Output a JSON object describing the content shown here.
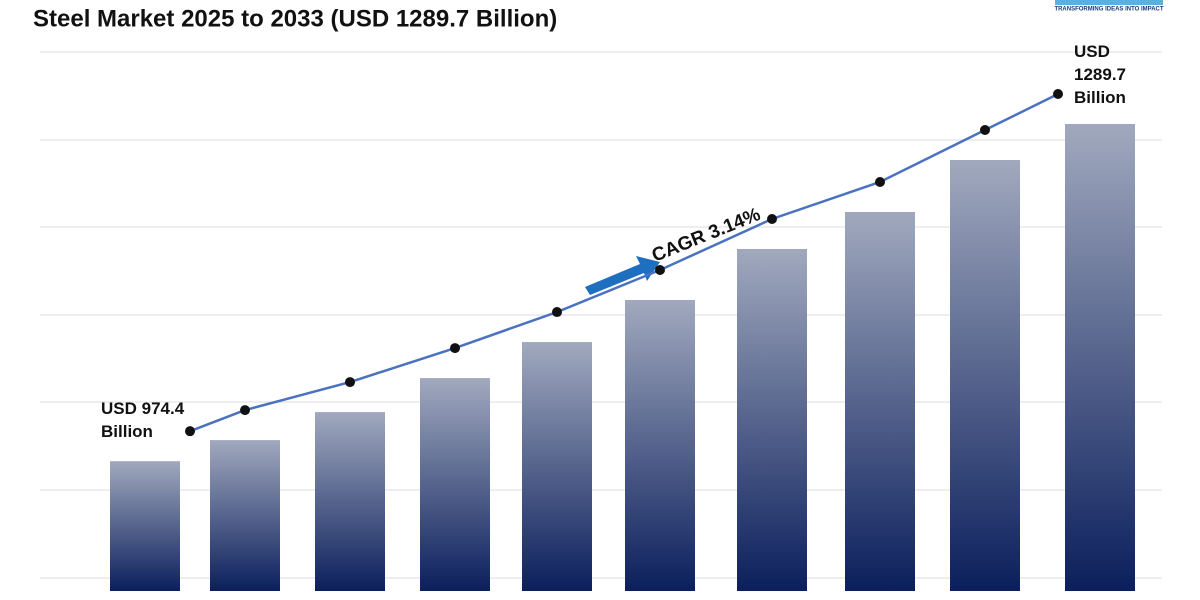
{
  "chart_data": {
    "type": "bar",
    "title": "Steel Market 2025 to 2033 (USD 1289.7 Billion)",
    "categories": [
      null,
      null,
      null,
      null,
      null,
      null,
      null,
      null,
      null,
      null
    ],
    "values": [
      974.4,
      994.1,
      1020.3,
      1052.1,
      1085.8,
      1125.1,
      1172.8,
      1207.4,
      1256.0,
      1289.7
    ],
    "value_labels": [
      "USD 974.4 Billion",
      null,
      null,
      null,
      null,
      null,
      null,
      null,
      null,
      "USD 1289.7 Billion"
    ],
    "color": "#0b1f5c",
    "line_color": "#4a72c0",
    "ylim": [
      853,
      1357
    ],
    "annotation": "CAGR 3.14%"
  },
  "logo_tagline": "TRANSFORMING IDEAS INTO IMPACT"
}
